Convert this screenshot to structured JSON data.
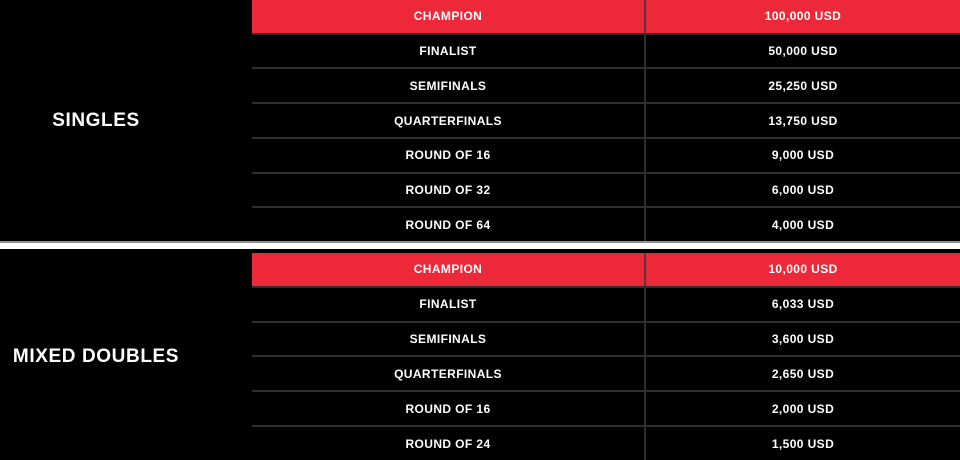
{
  "colors": {
    "accent": "#ed2939",
    "row_bg": "#000000",
    "border": "#2e2e2e",
    "text": "#ffffff",
    "divider": "#ffffff"
  },
  "tables": [
    {
      "category": "SINGLES",
      "columns": [
        "round",
        "prize"
      ],
      "rows": [
        {
          "round": "CHAMPION",
          "prize": "100,000 USD",
          "highlight": true
        },
        {
          "round": "FINALIST",
          "prize": "50,000 USD",
          "highlight": false
        },
        {
          "round": "SEMIFINALS",
          "prize": "25,250 USD",
          "highlight": false
        },
        {
          "round": "QUARTERFINALS",
          "prize": "13,750 USD",
          "highlight": false
        },
        {
          "round": "ROUND OF 16",
          "prize": "9,000 USD",
          "highlight": false
        },
        {
          "round": "ROUND OF 32",
          "prize": "6,000 USD",
          "highlight": false
        },
        {
          "round": "ROUND OF 64",
          "prize": "4,000 USD",
          "highlight": false
        }
      ]
    },
    {
      "category": "MIXED DOUBLES",
      "columns": [
        "round",
        "prize"
      ],
      "rows": [
        {
          "round": "CHAMPION",
          "prize": "10,000 USD",
          "highlight": true
        },
        {
          "round": "FINALIST",
          "prize": "6,033 USD",
          "highlight": false
        },
        {
          "round": "SEMIFINALS",
          "prize": "3,600 USD",
          "highlight": false
        },
        {
          "round": "QUARTERFINALS",
          "prize": "2,650 USD",
          "highlight": false
        },
        {
          "round": "ROUND OF 16",
          "prize": "2,000 USD",
          "highlight": false
        },
        {
          "round": "ROUND OF 24",
          "prize": "1,500 USD",
          "highlight": false
        }
      ]
    }
  ]
}
